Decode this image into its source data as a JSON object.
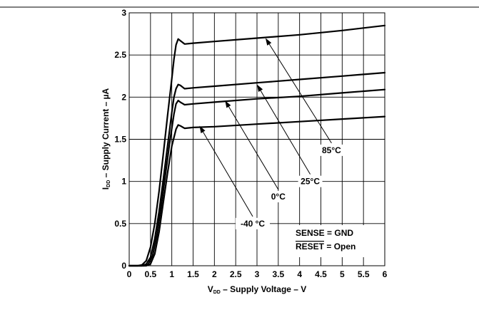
{
  "chart_data": {
    "type": "line",
    "title": "",
    "xlabel": {
      "main": "V",
      "sub": "DD",
      "rest": " – Supply Voltage – V"
    },
    "ylabel": {
      "main": "I",
      "sub": "DD",
      "rest": " – Supply Current – µA"
    },
    "xlim": [
      0,
      6
    ],
    "ylim": [
      0,
      3
    ],
    "xticks": [
      "0",
      "0.5",
      "1",
      "1.5",
      "2",
      "2.5",
      "3",
      "3.5",
      "4",
      "4.5",
      "5",
      "5.5",
      "6"
    ],
    "yticks": [
      "0",
      "0.5",
      "1",
      "1.5",
      "2",
      "2.5",
      "3"
    ],
    "grid": true,
    "series": [
      {
        "name": "85°C",
        "x": [
          0,
          0.2,
          0.3,
          0.4,
          0.5,
          0.6,
          0.7,
          0.8,
          0.9,
          1.0,
          1.05,
          1.1,
          1.15,
          1.2,
          1.3,
          1.5,
          2,
          3,
          4,
          5,
          6
        ],
        "y": [
          0,
          0,
          0.01,
          0.06,
          0.22,
          0.5,
          0.88,
          1.32,
          1.78,
          2.22,
          2.45,
          2.62,
          2.69,
          2.67,
          2.63,
          2.64,
          2.66,
          2.7,
          2.74,
          2.79,
          2.85
        ]
      },
      {
        "name": "25°C",
        "x": [
          0,
          0.3,
          0.4,
          0.5,
          0.6,
          0.7,
          0.8,
          0.9,
          1.0,
          1.05,
          1.1,
          1.15,
          1.2,
          1.3,
          1.5,
          2,
          3,
          4,
          5,
          6
        ],
        "y": [
          0,
          0,
          0.02,
          0.1,
          0.32,
          0.64,
          1.02,
          1.42,
          1.82,
          2.0,
          2.1,
          2.15,
          2.14,
          2.1,
          2.11,
          2.13,
          2.17,
          2.21,
          2.25,
          2.29
        ]
      },
      {
        "name": "0°C",
        "x": [
          0,
          0.35,
          0.45,
          0.55,
          0.65,
          0.75,
          0.85,
          0.95,
          1.05,
          1.1,
          1.15,
          1.2,
          1.3,
          1.5,
          2,
          3,
          4,
          5,
          6
        ],
        "y": [
          0,
          0,
          0.02,
          0.12,
          0.36,
          0.7,
          1.08,
          1.46,
          1.8,
          1.92,
          1.96,
          1.94,
          1.91,
          1.92,
          1.94,
          1.98,
          2.01,
          2.05,
          2.09
        ]
      },
      {
        "name": "-40 °C",
        "x": [
          0,
          0.4,
          0.5,
          0.6,
          0.7,
          0.8,
          0.9,
          1.0,
          1.1,
          1.15,
          1.2,
          1.3,
          1.5,
          2,
          3,
          4,
          5,
          6
        ],
        "y": [
          0,
          0,
          0.02,
          0.14,
          0.4,
          0.75,
          1.1,
          1.42,
          1.62,
          1.67,
          1.66,
          1.63,
          1.64,
          1.65,
          1.68,
          1.71,
          1.74,
          1.77
        ]
      }
    ],
    "annotations": [
      {
        "label": "85°C",
        "target": [
          3.2,
          2.7
        ],
        "text_at": [
          4.75,
          1.37
        ]
      },
      {
        "label": "25°C",
        "target": [
          3.0,
          2.15
        ],
        "text_at": [
          4.25,
          1.0
        ]
      },
      {
        "label": "0°C",
        "target": [
          2.25,
          1.96
        ],
        "text_at": [
          3.5,
          0.82
        ]
      },
      {
        "label": "-40 °C",
        "target": [
          1.65,
          1.66
        ],
        "text_at": [
          2.9,
          0.5
        ]
      }
    ],
    "conditions": {
      "line1": "SENSE = GND",
      "line2_overbar": "RESET",
      "line2_rest": " = Open"
    }
  }
}
